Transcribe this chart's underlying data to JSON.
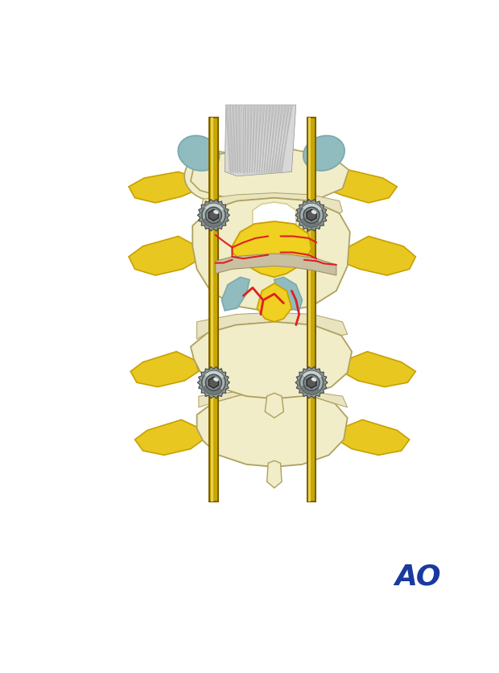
{
  "background": "#ffffff",
  "bone_light": "#f0edc8",
  "bone_color": "#eae5be",
  "bone_outline": "#b0a060",
  "yellow_bright": "#f0d020",
  "yellow_color": "#e8c820",
  "yellow_dark": "#c8a000",
  "blue_gray": "#90bcc0",
  "blue_gray2": "#7aaab0",
  "rod_gold": "#c8a800",
  "rod_light": "#e8d050",
  "rod_dark": "#806000",
  "screw_mid": "#909090",
  "screw_dark": "#505050",
  "screw_light": "#c8c8c8",
  "red_color": "#dd2020",
  "gray_line": "#909090",
  "ao_color": "#1a3a9e",
  "white": "#ffffff"
}
